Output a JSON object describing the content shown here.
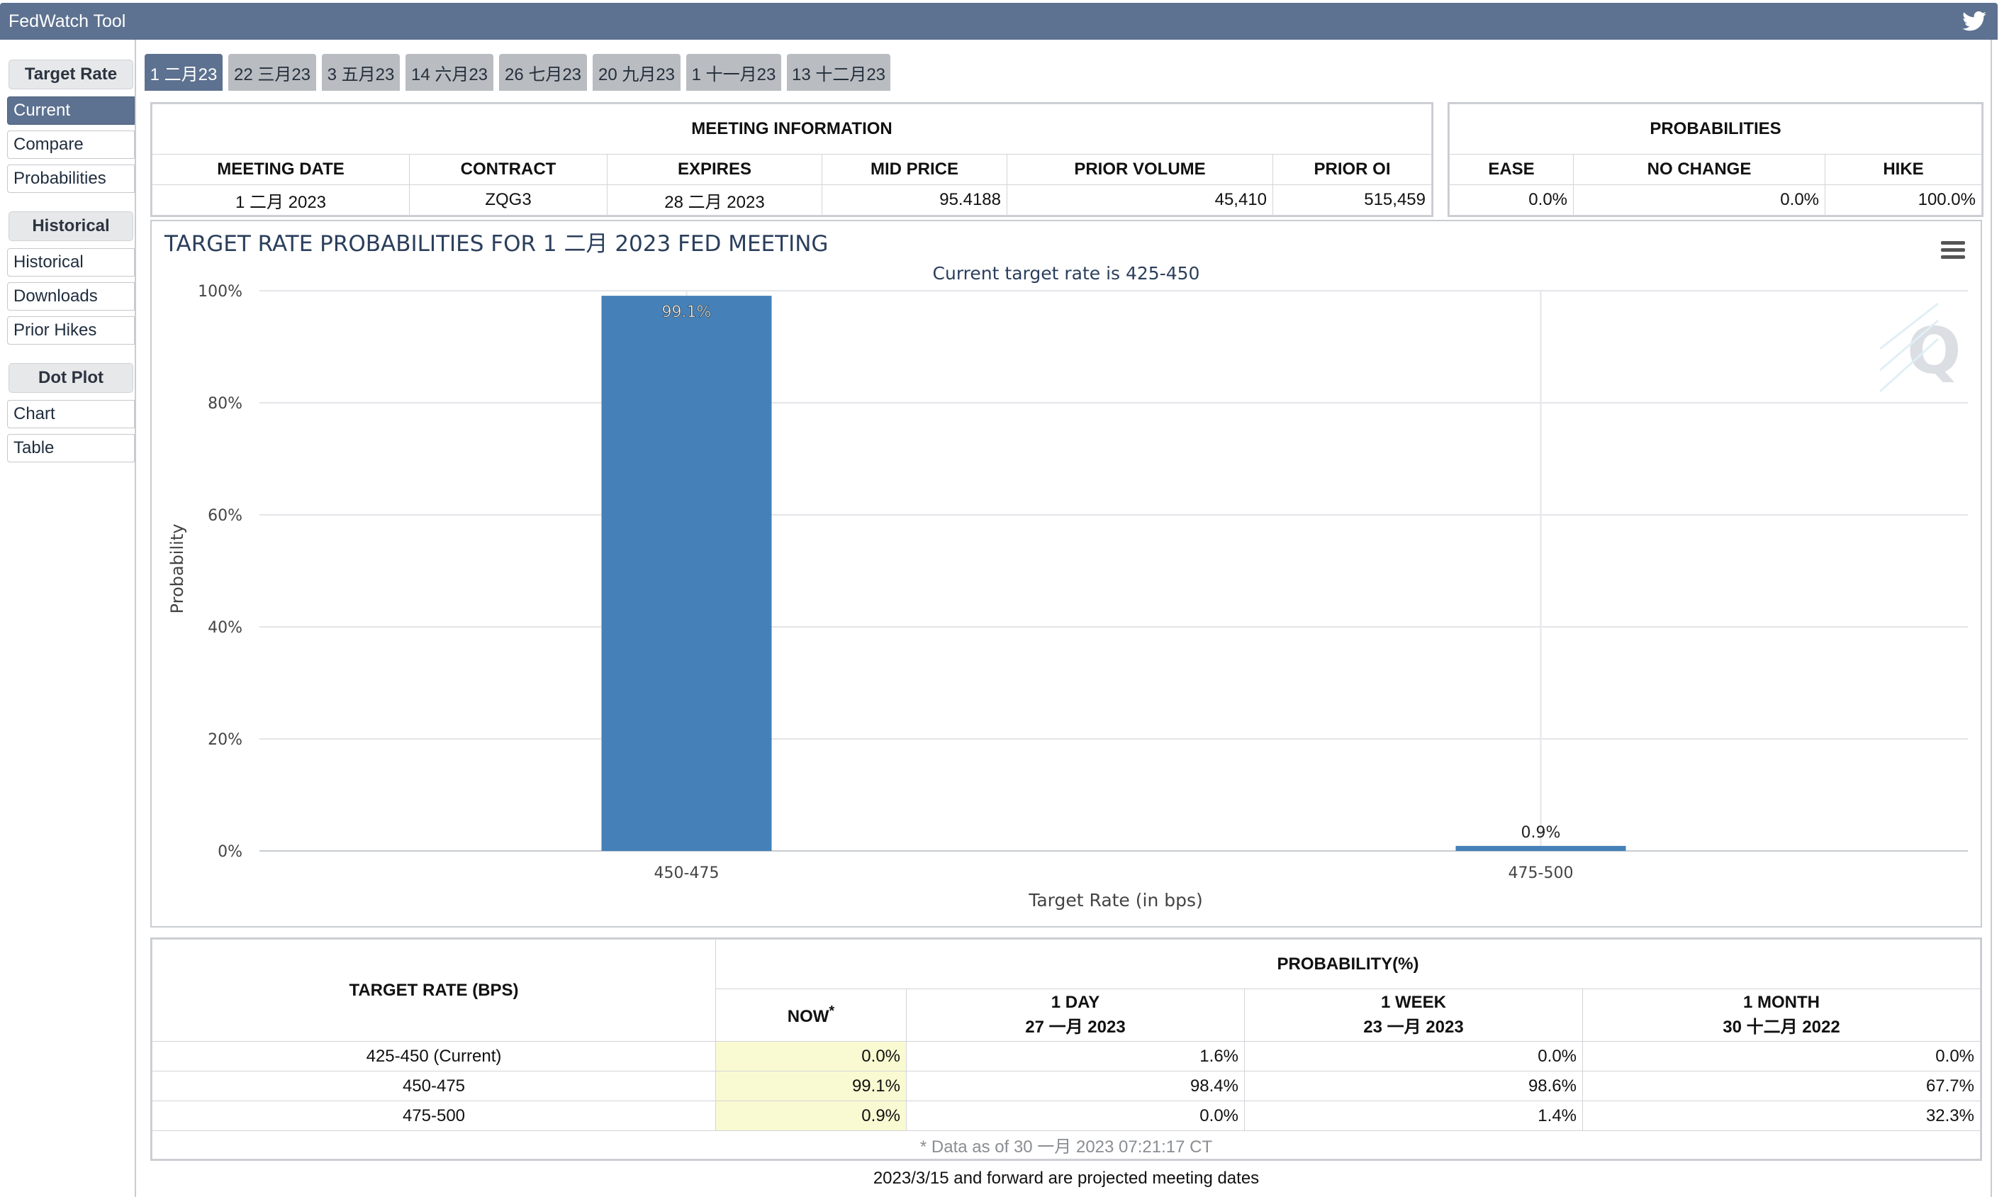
{
  "app": {
    "title": "FedWatch Tool"
  },
  "sidebar": {
    "target_rate": {
      "label": "Target Rate",
      "items": [
        {
          "label": "Current"
        },
        {
          "label": "Compare"
        },
        {
          "label": "Probabilities"
        }
      ]
    },
    "historical": {
      "label": "Historical",
      "items": [
        {
          "label": "Historical"
        },
        {
          "label": "Downloads"
        },
        {
          "label": "Prior Hikes"
        }
      ]
    },
    "dot_plot": {
      "label": "Dot Plot",
      "items": [
        {
          "label": "Chart"
        },
        {
          "label": "Table"
        }
      ]
    }
  },
  "tabs": [
    {
      "label": "1 二月23"
    },
    {
      "label": "22 三月23"
    },
    {
      "label": "3 五月23"
    },
    {
      "label": "14 六月23"
    },
    {
      "label": "26 七月23"
    },
    {
      "label": "20 九月23"
    },
    {
      "label": "1 十一月23"
    },
    {
      "label": "13 十二月23"
    }
  ],
  "meeting_info": {
    "caption": "MEETING INFORMATION",
    "headers": [
      "MEETING DATE",
      "CONTRACT",
      "EXPIRES",
      "MID PRICE",
      "PRIOR VOLUME",
      "PRIOR OI"
    ],
    "row": [
      "1 二月 2023",
      "ZQG3",
      "28 二月 2023",
      "95.4188",
      "45,410",
      "515,459"
    ]
  },
  "probabilities": {
    "caption": "PROBABILITIES",
    "headers": [
      "EASE",
      "NO CHANGE",
      "HIKE"
    ],
    "row": [
      "0.0%",
      "0.0%",
      "100.0%"
    ]
  },
  "chart_data": {
    "type": "bar",
    "title": "TARGET RATE PROBABILITIES FOR 1 二月 2023 FED MEETING",
    "subtitle": "Current target rate is 425-450",
    "xlabel": "Target Rate (in bps)",
    "ylabel": "Probability",
    "categories": [
      "450-475",
      "475-500"
    ],
    "values": [
      99.1,
      0.9
    ],
    "data_labels": [
      "99.1%",
      "0.9%"
    ],
    "ylim": [
      0,
      100
    ],
    "yticks": [
      "0%",
      "20%",
      "40%",
      "60%",
      "80%",
      "100%"
    ],
    "grid": true,
    "bar_color": "#4581b8"
  },
  "prob_table": {
    "rate_header": "TARGET RATE (BPS)",
    "prob_header": "PROBABILITY(%)",
    "now_label": "NOW",
    "now_mark": "*",
    "col_1day": "1 DAY",
    "col_1day_date": "27 一月 2023",
    "col_1week": "1 WEEK",
    "col_1week_date": "23 一月 2023",
    "col_1month": "1 MONTH",
    "col_1month_date": "30 十二月 2022",
    "rows": [
      {
        "rate": "425-450 (Current)",
        "now": "0.0%",
        "day": "1.6%",
        "week": "0.0%",
        "month": "0.0%"
      },
      {
        "rate": "450-475",
        "now": "99.1%",
        "day": "98.4%",
        "week": "98.6%",
        "month": "67.7%"
      },
      {
        "rate": "475-500",
        "now": "0.9%",
        "day": "0.0%",
        "week": "1.4%",
        "month": "32.3%"
      }
    ],
    "footnote": "* Data as of 30 一月 2023 07:21:17 CT"
  },
  "projection_note": "2023/3/15 and forward are projected meeting dates"
}
